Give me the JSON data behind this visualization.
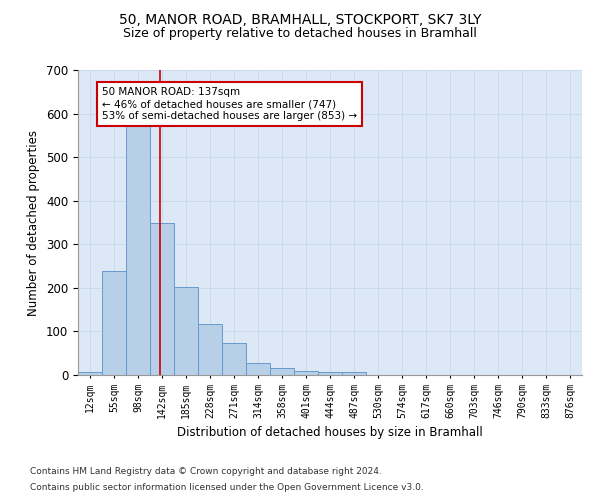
{
  "title": "50, MANOR ROAD, BRAMHALL, STOCKPORT, SK7 3LY",
  "subtitle": "Size of property relative to detached houses in Bramhall",
  "xlabel": "Distribution of detached houses by size in Bramhall",
  "ylabel": "Number of detached properties",
  "footnote1": "Contains HM Land Registry data © Crown copyright and database right 2024.",
  "footnote2": "Contains public sector information licensed under the Open Government Licence v3.0.",
  "bin_labels": [
    "12sqm",
    "55sqm",
    "98sqm",
    "142sqm",
    "185sqm",
    "228sqm",
    "271sqm",
    "314sqm",
    "358sqm",
    "401sqm",
    "444sqm",
    "487sqm",
    "530sqm",
    "574sqm",
    "617sqm",
    "660sqm",
    "703sqm",
    "746sqm",
    "790sqm",
    "833sqm",
    "876sqm"
  ],
  "bar_values": [
    8,
    238,
    590,
    350,
    203,
    118,
    73,
    27,
    15,
    9,
    7,
    8,
    0,
    0,
    0,
    0,
    0,
    0,
    0,
    0,
    0
  ],
  "bar_color": "#b8cfe8",
  "bar_edge_color": "#6699cc",
  "bar_width": 1.0,
  "vline_x": 2.93,
  "vline_color": "#cc0000",
  "annotation_line1": "50 MANOR ROAD: 137sqm",
  "annotation_line2": "← 46% of detached houses are smaller (747)",
  "annotation_line3": "53% of semi-detached houses are larger (853) →",
  "annotation_box_color": "#cc0000",
  "annotation_box_facecolor": "white",
  "ylim": [
    0,
    700
  ],
  "yticks": [
    0,
    100,
    200,
    300,
    400,
    500,
    600,
    700
  ],
  "grid_color": "#c8d8ea",
  "background_color": "#dce8f5",
  "title_fontsize": 10,
  "subtitle_fontsize": 9,
  "footnote_fontsize": 6.5
}
